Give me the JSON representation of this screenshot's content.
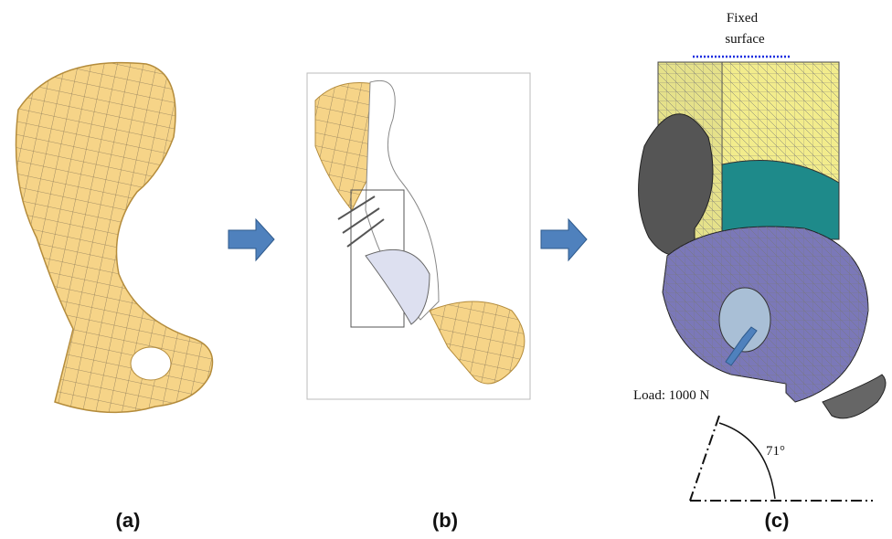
{
  "panels": [
    {
      "label": "(a)"
    },
    {
      "label": "(b)"
    },
    {
      "label": "(c)"
    }
  ],
  "annotations": {
    "fixed_surface": [
      "Fixed",
      "surface"
    ],
    "load": "Load: 1000 N",
    "angle": "71°"
  }
}
